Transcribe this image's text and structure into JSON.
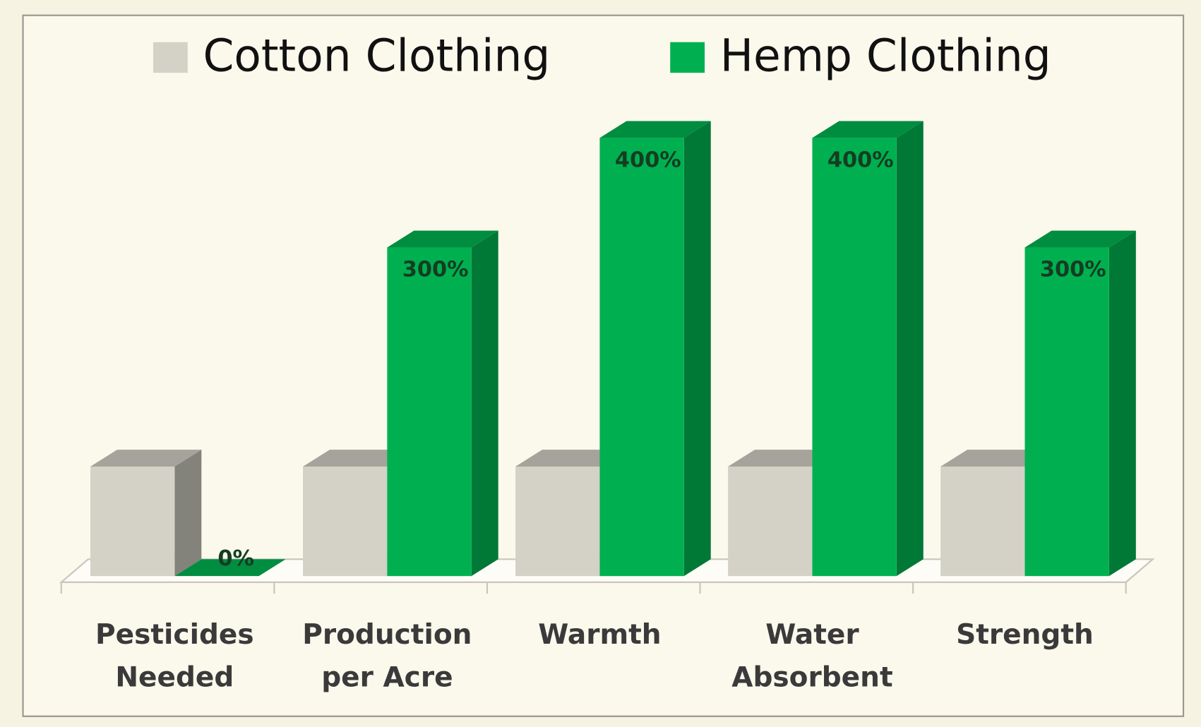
{
  "chart_data": {
    "type": "bar",
    "categories": [
      "Pesticides\nNeeded",
      "Production\nper Acre",
      "Warmth",
      "Water\nAbsorbent",
      "Strength"
    ],
    "series": [
      {
        "name": "Cotton Clothing",
        "color": "#d4d1c7",
        "values": [
          100,
          100,
          100,
          100,
          100
        ]
      },
      {
        "name": "Hemp Clothing",
        "color": "#00b050",
        "values": [
          0,
          300,
          400,
          400,
          300
        ],
        "value_labels": [
          "0%",
          "300%",
          "400%",
          "400%",
          "300%"
        ]
      }
    ]
  }
}
